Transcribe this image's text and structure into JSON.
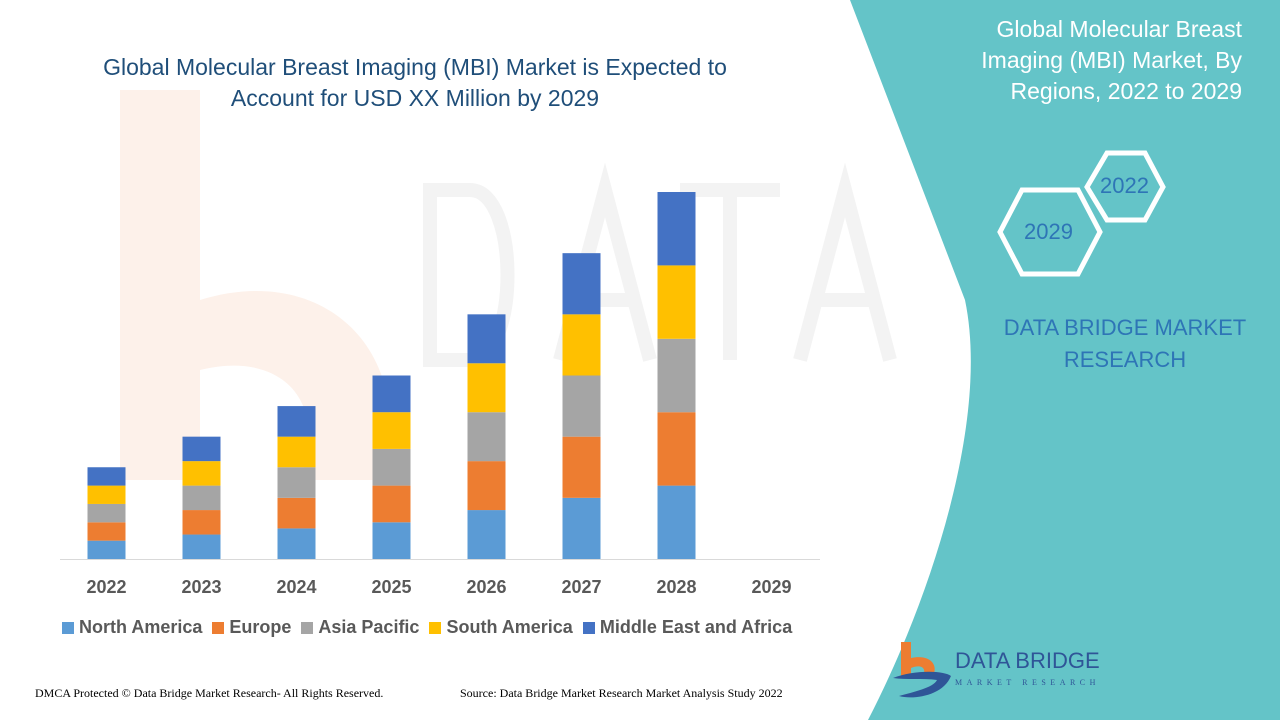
{
  "title": "Global Molecular Breast Imaging (MBI) Market is Expected to Account for USD XX Million by 2029",
  "side_panel": {
    "title": "Global Molecular Breast Imaging (MBI) Market, By Regions, 2022 to 2029",
    "hex_years": [
      "2022",
      "2029"
    ],
    "brand": "DATA BRIDGE MARKET RESEARCH",
    "color": "#64c4c8"
  },
  "footer": {
    "copyright": "DMCA Protected © Data Bridge Market Research- All Rights Reserved.",
    "source": "Source: Data Bridge Market Research Market Analysis Study 2022"
  },
  "logo": {
    "name": "DATA BRIDGE",
    "sub": "MARKET RESEARCH"
  },
  "chart_data": {
    "type": "bar",
    "stacked": true,
    "title": "Global Molecular Breast Imaging (MBI) Market is Expected to Account for USD XX Million by 2029",
    "categories": [
      "2022",
      "2023",
      "2024",
      "2025",
      "2026",
      "2027",
      "2028",
      "2029"
    ],
    "series": [
      {
        "name": "North America",
        "color": "#5b9bd5",
        "values": [
          3,
          4,
          5,
          6,
          8,
          10,
          12,
          null
        ]
      },
      {
        "name": "Europe",
        "color": "#ed7d31",
        "values": [
          3,
          4,
          5,
          6,
          8,
          10,
          12,
          null
        ]
      },
      {
        "name": "Asia Pacific",
        "color": "#a5a5a5",
        "values": [
          3,
          4,
          5,
          6,
          8,
          10,
          12,
          null
        ]
      },
      {
        "name": "South America",
        "color": "#ffc000",
        "values": [
          3,
          4,
          5,
          6,
          8,
          10,
          12,
          null
        ]
      },
      {
        "name": "Middle East and Africa",
        "color": "#4472c4",
        "values": [
          3,
          4,
          5,
          6,
          8,
          10,
          12,
          null
        ]
      }
    ],
    "xlabel": "",
    "ylabel": "",
    "y_axis_shown": false,
    "grid": false,
    "legend": "bottom"
  }
}
